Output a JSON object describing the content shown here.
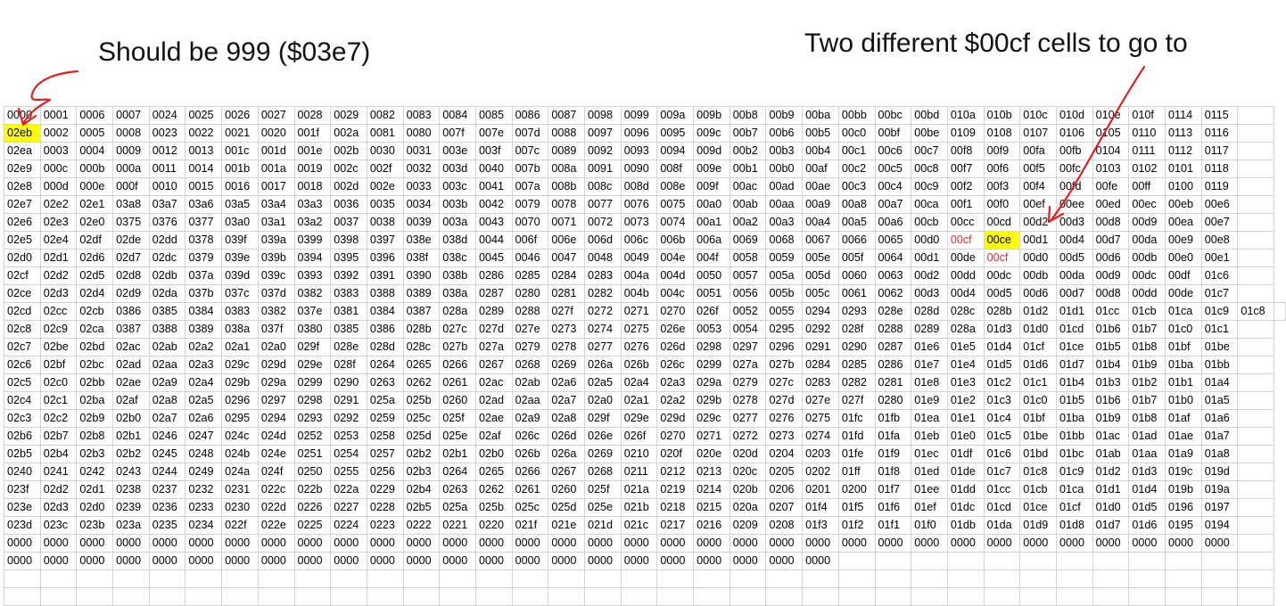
{
  "annotations": {
    "left": "Should be 999 ($03e7)",
    "right": "Two different $00cf cells to go to"
  },
  "colors": {
    "highlight": "#ffff00",
    "red_text": "#d62f2f",
    "arrow": "#e02020",
    "gridline": "#d4d4d4"
  },
  "highlights": [
    [
      1,
      0
    ],
    [
      7,
      27
    ]
  ],
  "red_cells": [
    [
      7,
      26
    ],
    [
      8,
      27
    ]
  ],
  "grid": {
    "rows": [
      [
        "0000",
        "0001",
        "0006",
        "0007",
        "0024",
        "0025",
        "0026",
        "0027",
        "0028",
        "0029",
        "0082",
        "0083",
        "0084",
        "0085",
        "0086",
        "0087",
        "0098",
        "0099",
        "009a",
        "009b",
        "00b8",
        "00b9",
        "00ba",
        "00bb",
        "00bc",
        "00bd",
        "010a",
        "010b",
        "010c",
        "010d",
        "010e",
        "010f",
        "0114",
        "0115",
        ""
      ],
      [
        "02eb",
        "0002",
        "0005",
        "0008",
        "0023",
        "0022",
        "0021",
        "0020",
        "001f",
        "002a",
        "0081",
        "0080",
        "007f",
        "007e",
        "007d",
        "0088",
        "0097",
        "0096",
        "0095",
        "009c",
        "00b7",
        "00b6",
        "00b5",
        "00c0",
        "00bf",
        "00be",
        "0109",
        "0108",
        "0107",
        "0106",
        "0105",
        "0110",
        "0113",
        "0116",
        ""
      ],
      [
        "02ea",
        "0003",
        "0004",
        "0009",
        "0012",
        "0013",
        "001c",
        "001d",
        "001e",
        "002b",
        "0030",
        "0031",
        "003e",
        "003f",
        "007c",
        "0089",
        "0092",
        "0093",
        "0094",
        "009d",
        "00b2",
        "00b3",
        "00b4",
        "00c1",
        "00c6",
        "00c7",
        "00f8",
        "00f9",
        "00fa",
        "00fb",
        "0104",
        "0111",
        "0112",
        "0117",
        ""
      ],
      [
        "02e9",
        "000c",
        "000b",
        "000a",
        "0011",
        "0014",
        "001b",
        "001a",
        "0019",
        "002c",
        "002f",
        "0032",
        "003d",
        "0040",
        "007b",
        "008a",
        "0091",
        "0090",
        "008f",
        "009e",
        "00b1",
        "00b0",
        "00af",
        "00c2",
        "00c5",
        "00c8",
        "00f7",
        "00f6",
        "00f5",
        "00fc",
        "0103",
        "0102",
        "0101",
        "0118",
        ""
      ],
      [
        "02e8",
        "000d",
        "000e",
        "000f",
        "0010",
        "0015",
        "0016",
        "0017",
        "0018",
        "002d",
        "002e",
        "0033",
        "003c",
        "0041",
        "007a",
        "008b",
        "008c",
        "008d",
        "008e",
        "009f",
        "00ac",
        "00ad",
        "00ae",
        "00c3",
        "00c4",
        "00c9",
        "00f2",
        "00f3",
        "00f4",
        "00fd",
        "00fe",
        "00ff",
        "0100",
        "0119",
        ""
      ],
      [
        "02e7",
        "02e2",
        "02e1",
        "03a8",
        "03a7",
        "03a6",
        "03a5",
        "03a4",
        "03a3",
        "0036",
        "0035",
        "0034",
        "003b",
        "0042",
        "0079",
        "0078",
        "0077",
        "0076",
        "0075",
        "00a0",
        "00ab",
        "00aa",
        "00a9",
        "00a8",
        "00a7",
        "00ca",
        "00f1",
        "00f0",
        "00ef",
        "00ee",
        "00ed",
        "00ec",
        "00eb",
        "00e6",
        ""
      ],
      [
        "02e6",
        "02e3",
        "02e0",
        "0375",
        "0376",
        "0377",
        "03a0",
        "03a1",
        "03a2",
        "0037",
        "0038",
        "0039",
        "003a",
        "0043",
        "0070",
        "0071",
        "0072",
        "0073",
        "0074",
        "00a1",
        "00a2",
        "00a3",
        "00a4",
        "00a5",
        "00a6",
        "00cb",
        "00cc",
        "00cd",
        "00d2",
        "00d3",
        "00d8",
        "00d9",
        "00ea",
        "00e7",
        ""
      ],
      [
        "02e5",
        "02e4",
        "02df",
        "02de",
        "02dd",
        "0378",
        "039f",
        "039a",
        "0399",
        "0398",
        "0397",
        "038e",
        "038d",
        "0044",
        "006f",
        "006e",
        "006d",
        "006c",
        "006b",
        "006a",
        "0069",
        "0068",
        "0067",
        "0066",
        "0065",
        "00d0",
        "00cf",
        "00ce",
        "00d1",
        "00d4",
        "00d7",
        "00da",
        "00e9",
        "00e8",
        ""
      ],
      [
        "02d0",
        "02d1",
        "02d6",
        "02d7",
        "02dc",
        "0379",
        "039e",
        "039b",
        "0394",
        "0395",
        "0396",
        "038f",
        "038c",
        "0045",
        "0046",
        "0047",
        "0048",
        "0049",
        "004e",
        "004f",
        "0058",
        "0059",
        "005e",
        "005f",
        "0064",
        "00d1",
        "00de",
        "00cf",
        "00d0",
        "00d5",
        "00d6",
        "00db",
        "00e0",
        "00e1",
        ""
      ],
      [
        "02cf",
        "02d2",
        "02d5",
        "02d8",
        "02db",
        "037a",
        "039d",
        "039c",
        "0393",
        "0392",
        "0391",
        "0390",
        "038b",
        "0286",
        "0285",
        "0284",
        "0283",
        "004a",
        "004d",
        "0050",
        "0057",
        "005a",
        "005d",
        "0060",
        "0063",
        "00d2",
        "00dd",
        "00dc",
        "00db",
        "00da",
        "00d9",
        "00dc",
        "00df",
        "01c6",
        ""
      ],
      [
        "02ce",
        "02d3",
        "02d4",
        "02d9",
        "02da",
        "037b",
        "037c",
        "037d",
        "0382",
        "0383",
        "0388",
        "0389",
        "038a",
        "0287",
        "0280",
        "0281",
        "0282",
        "004b",
        "004c",
        "0051",
        "0056",
        "005b",
        "005c",
        "0061",
        "0062",
        "00d3",
        "00d4",
        "00d5",
        "00d6",
        "00d7",
        "00d8",
        "00dd",
        "00de",
        "01c7",
        ""
      ],
      [
        "02cd",
        "02cc",
        "02cb",
        "0386",
        "0385",
        "0384",
        "0383",
        "0382",
        "037e",
        "0381",
        "0384",
        "0387",
        "028a",
        "0289",
        "0288",
        "027f",
        "0272",
        "0271",
        "0270",
        "026f",
        "0052",
        "0055",
        "0294",
        "0293",
        "028e",
        "028d",
        "028c",
        "028b",
        "01d2",
        "01d1",
        "01cc",
        "01cb",
        "01ca",
        "01c9",
        "01c8",
        ""
      ],
      [
        "02c8",
        "02c9",
        "02ca",
        "0387",
        "0388",
        "0389",
        "038a",
        "037f",
        "0380",
        "0385",
        "0386",
        "028b",
        "027c",
        "027d",
        "027e",
        "0273",
        "0274",
        "0275",
        "026e",
        "0053",
        "0054",
        "0295",
        "0292",
        "028f",
        "0288",
        "0289",
        "028a",
        "01d3",
        "01d0",
        "01cd",
        "01b6",
        "01b7",
        "01c0",
        "01c1",
        ""
      ],
      [
        "02c7",
        "02be",
        "02bd",
        "02ac",
        "02ab",
        "02a2",
        "02a1",
        "02a0",
        "029f",
        "028e",
        "028d",
        "028c",
        "027b",
        "027a",
        "0279",
        "0278",
        "0277",
        "0276",
        "026d",
        "0298",
        "0297",
        "0296",
        "0291",
        "0290",
        "0287",
        "01e6",
        "01e5",
        "01d4",
        "01cf",
        "01ce",
        "01b5",
        "01b8",
        "01bf",
        "01be",
        ""
      ],
      [
        "02c6",
        "02bf",
        "02bc",
        "02ad",
        "02aa",
        "02a3",
        "029c",
        "029d",
        "029e",
        "028f",
        "0264",
        "0265",
        "0266",
        "0267",
        "0268",
        "0269",
        "026a",
        "026b",
        "026c",
        "0299",
        "027a",
        "027b",
        "0284",
        "0285",
        "0286",
        "01e7",
        "01e4",
        "01d5",
        "01d6",
        "01d7",
        "01b4",
        "01b9",
        "01ba",
        "01bb",
        ""
      ],
      [
        "02c5",
        "02c0",
        "02bb",
        "02ae",
        "02a9",
        "02a4",
        "029b",
        "029a",
        "0299",
        "0290",
        "0263",
        "0262",
        "0261",
        "02ac",
        "02ab",
        "02a6",
        "02a5",
        "02a4",
        "02a3",
        "029a",
        "0279",
        "027c",
        "0283",
        "0282",
        "0281",
        "01e8",
        "01e3",
        "01c2",
        "01c1",
        "01b4",
        "01b3",
        "01b2",
        "01b1",
        "01a4",
        ""
      ],
      [
        "02c4",
        "02c1",
        "02ba",
        "02af",
        "02a8",
        "02a5",
        "0296",
        "0297",
        "0298",
        "0291",
        "025a",
        "025b",
        "0260",
        "02ad",
        "02aa",
        "02a7",
        "02a0",
        "02a1",
        "02a2",
        "029b",
        "0278",
        "027d",
        "027e",
        "027f",
        "0280",
        "01e9",
        "01e2",
        "01c3",
        "01c0",
        "01b5",
        "01b6",
        "01b7",
        "01b0",
        "01a5",
        ""
      ],
      [
        "02c3",
        "02c2",
        "02b9",
        "02b0",
        "02a7",
        "02a6",
        "0295",
        "0294",
        "0293",
        "0292",
        "0259",
        "025c",
        "025f",
        "02ae",
        "02a9",
        "02a8",
        "029f",
        "029e",
        "029d",
        "029c",
        "0277",
        "0276",
        "0275",
        "01fc",
        "01fb",
        "01ea",
        "01e1",
        "01c4",
        "01bf",
        "01ba",
        "01b9",
        "01b8",
        "01af",
        "01a6",
        ""
      ],
      [
        "02b6",
        "02b7",
        "02b8",
        "02b1",
        "0246",
        "0247",
        "024c",
        "024d",
        "0252",
        "0253",
        "0258",
        "025d",
        "025e",
        "02af",
        "026c",
        "026d",
        "026e",
        "026f",
        "0270",
        "0271",
        "0272",
        "0273",
        "0274",
        "01fd",
        "01fa",
        "01eb",
        "01e0",
        "01c5",
        "01be",
        "01bb",
        "01ac",
        "01ad",
        "01ae",
        "01a7",
        ""
      ],
      [
        "02b5",
        "02b4",
        "02b3",
        "02b2",
        "0245",
        "0248",
        "024b",
        "024e",
        "0251",
        "0254",
        "0257",
        "02b2",
        "02b1",
        "02b0",
        "026b",
        "026a",
        "0269",
        "0210",
        "020f",
        "020e",
        "020d",
        "0204",
        "0203",
        "01fe",
        "01f9",
        "01ec",
        "01df",
        "01c6",
        "01bd",
        "01bc",
        "01ab",
        "01aa",
        "01a9",
        "01a8",
        ""
      ],
      [
        "0240",
        "0241",
        "0242",
        "0243",
        "0244",
        "0249",
        "024a",
        "024f",
        "0250",
        "0255",
        "0256",
        "02b3",
        "0264",
        "0265",
        "0266",
        "0267",
        "0268",
        "0211",
        "0212",
        "0213",
        "020c",
        "0205",
        "0202",
        "01ff",
        "01f8",
        "01ed",
        "01de",
        "01c7",
        "01c8",
        "01c9",
        "01d2",
        "01d3",
        "019c",
        "019d",
        ""
      ],
      [
        "023f",
        "02d2",
        "02d1",
        "0238",
        "0237",
        "0232",
        "0231",
        "022c",
        "022b",
        "022a",
        "0229",
        "02b4",
        "0263",
        "0262",
        "0261",
        "0260",
        "025f",
        "021a",
        "0219",
        "0214",
        "020b",
        "0206",
        "0201",
        "0200",
        "01f7",
        "01ee",
        "01dd",
        "01cc",
        "01cb",
        "01ca",
        "01d1",
        "01d4",
        "019b",
        "019a",
        ""
      ],
      [
        "023e",
        "02d3",
        "02d0",
        "0239",
        "0236",
        "0233",
        "0230",
        "022d",
        "0226",
        "0227",
        "0228",
        "02b5",
        "025a",
        "025b",
        "025c",
        "025d",
        "025e",
        "021b",
        "0218",
        "0215",
        "020a",
        "0207",
        "01f4",
        "01f5",
        "01f6",
        "01ef",
        "01dc",
        "01cd",
        "01ce",
        "01cf",
        "01d0",
        "01d5",
        "0196",
        "0197",
        ""
      ],
      [
        "023d",
        "023c",
        "023b",
        "023a",
        "0235",
        "0234",
        "022f",
        "022e",
        "0225",
        "0224",
        "0223",
        "0222",
        "0221",
        "0220",
        "021f",
        "021e",
        "021d",
        "021c",
        "0217",
        "0216",
        "0209",
        "0208",
        "01f3",
        "01f2",
        "01f1",
        "01f0",
        "01db",
        "01da",
        "01d9",
        "01d8",
        "01d7",
        "01d6",
        "0195",
        "0194",
        ""
      ],
      [
        "0000",
        "0000",
        "0000",
        "0000",
        "0000",
        "0000",
        "0000",
        "0000",
        "0000",
        "0000",
        "0000",
        "0000",
        "0000",
        "0000",
        "0000",
        "0000",
        "0000",
        "0000",
        "0000",
        "0000",
        "0000",
        "0000",
        "0000",
        "0000",
        "0000",
        "0000",
        "0000",
        "0000",
        "0000",
        "0000",
        "0000",
        "0000",
        "0000",
        "0000",
        ""
      ],
      [
        "0000",
        "0000",
        "0000",
        "0000",
        "0000",
        "0000",
        "0000",
        "0000",
        "0000",
        "0000",
        "0000",
        "0000",
        "0000",
        "0000",
        "0000",
        "0000",
        "0000",
        "0000",
        "0000",
        "0000",
        "0000",
        "0000",
        "0000",
        "",
        "",
        "",
        "",
        "",
        "",
        "",
        "",
        "",
        "",
        "",
        ""
      ],
      [
        "",
        "",
        "",
        "",
        "",
        "",
        "",
        "",
        "",
        "",
        "",
        "",
        "",
        "",
        "",
        "",
        "",
        "",
        "",
        "",
        "",
        "",
        "",
        "",
        "",
        "",
        "",
        "",
        "",
        "",
        "",
        "",
        "",
        "",
        ""
      ],
      [
        "",
        "",
        "",
        "",
        "",
        "",
        "",
        "",
        "",
        "",
        "",
        "",
        "",
        "",
        "",
        "",
        "",
        "",
        "",
        "",
        "",
        "",
        "",
        "",
        "",
        "",
        "",
        "",
        "",
        "",
        "",
        "",
        "",
        "",
        ""
      ]
    ]
  }
}
